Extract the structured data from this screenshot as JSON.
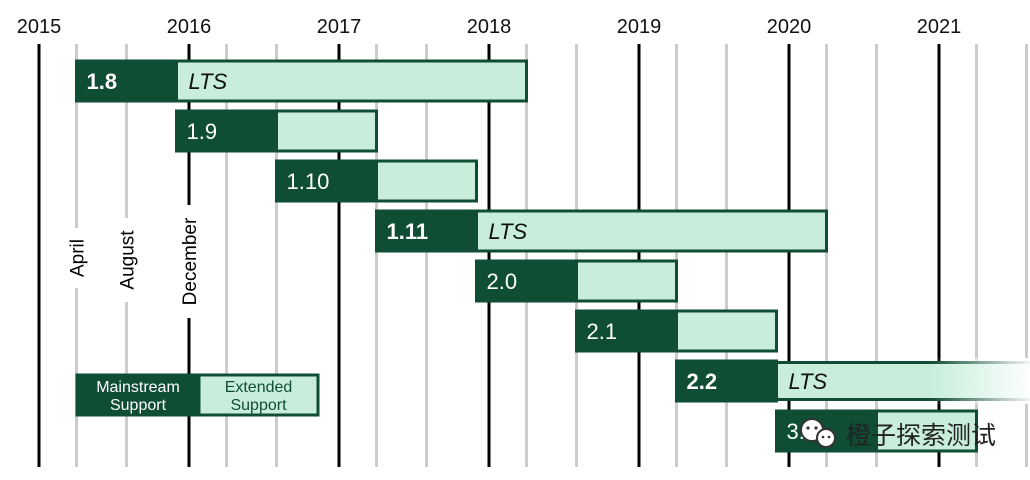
{
  "chart_data": {
    "type": "gantt",
    "x_axis": {
      "years": [
        "2015",
        "2016",
        "2017",
        "2018",
        "2019",
        "2020",
        "2021"
      ],
      "minor_ticks": [
        "April",
        "August",
        "December"
      ]
    },
    "legend": {
      "placement": "bottom-left",
      "mainstream_label": "Mainstream Support",
      "extended_label": "Extended Support"
    },
    "releases": [
      {
        "version": "1.8",
        "release": "2015-04",
        "mainstream_end": "2015-12",
        "extended_end": "2018-04",
        "lts": true,
        "lts_label": "LTS"
      },
      {
        "version": "1.9",
        "release": "2015-12",
        "mainstream_end": "2016-08",
        "extended_end": "2017-04",
        "lts": false
      },
      {
        "version": "1.10",
        "release": "2016-08",
        "mainstream_end": "2017-04",
        "extended_end": "2017-12",
        "lts": false
      },
      {
        "version": "1.11",
        "release": "2017-04",
        "mainstream_end": "2017-12",
        "extended_end": "2020-04",
        "lts": true,
        "lts_label": "LTS"
      },
      {
        "version": "2.0",
        "release": "2017-12",
        "mainstream_end": "2018-08",
        "extended_end": "2019-04",
        "lts": false
      },
      {
        "version": "2.1",
        "release": "2018-08",
        "mainstream_end": "2019-04",
        "extended_end": "2019-12",
        "lts": false
      },
      {
        "version": "2.2",
        "release": "2019-04",
        "mainstream_end": "2019-12",
        "extended_end": "2022-04",
        "lts": true,
        "lts_label": "LTS",
        "fades_out": true
      },
      {
        "version": "3.0",
        "release": "2019-12",
        "mainstream_end": "2020-08",
        "extended_end": "2021-04",
        "lts": false
      }
    ],
    "colors": {
      "mainstream": "#0f4d35",
      "extended": "#c8eedb",
      "border": "#0f4d35",
      "year_line": "#000000",
      "minor_line": "#cccccc"
    }
  },
  "watermark": {
    "text": "橙子探索测试",
    "icon": "wechat-icon"
  }
}
